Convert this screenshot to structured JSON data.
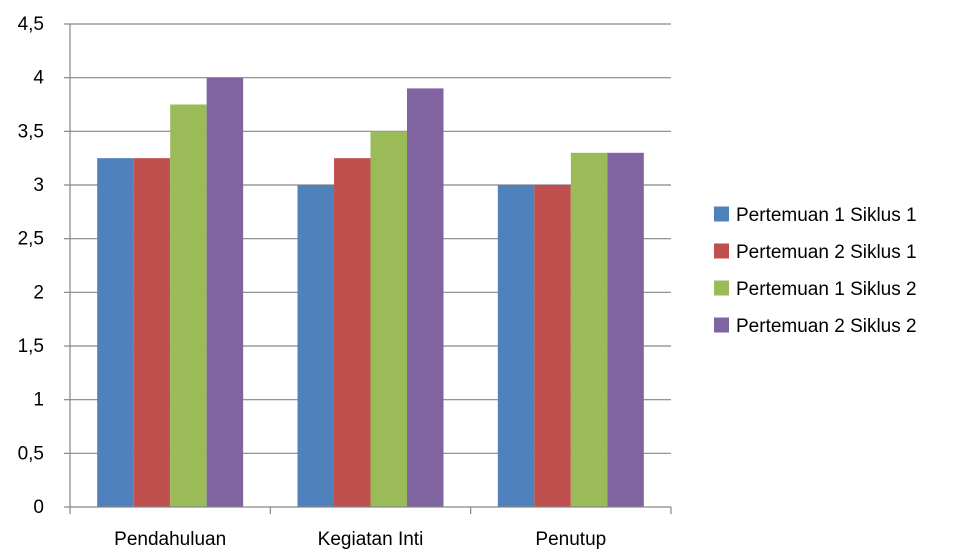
{
  "chart_data": {
    "type": "bar",
    "categories": [
      "Pendahuluan",
      "Kegiatan Inti",
      "Penutup"
    ],
    "series": [
      {
        "name": "Pertemuan 1 Siklus 1",
        "values": [
          3.25,
          3.0,
          3.0
        ],
        "color": "#4F81BD"
      },
      {
        "name": "Pertemuan 2 Siklus 1",
        "values": [
          3.25,
          3.25,
          3.0
        ],
        "color": "#C0504D"
      },
      {
        "name": "Pertemuan 1 Siklus 2",
        "values": [
          3.75,
          3.5,
          3.3
        ],
        "color": "#9BBB59"
      },
      {
        "name": "Pertemuan 2 Siklus 2",
        "values": [
          4.0,
          3.9,
          3.3
        ],
        "color": "#8064A2"
      }
    ],
    "yticks": [
      "0",
      "0,5",
      "1",
      "1,5",
      "2",
      "2,5",
      "3",
      "3,5",
      "4",
      "4,5"
    ],
    "ylim": [
      0,
      4.5
    ],
    "grid": true,
    "legend_position": "right"
  }
}
